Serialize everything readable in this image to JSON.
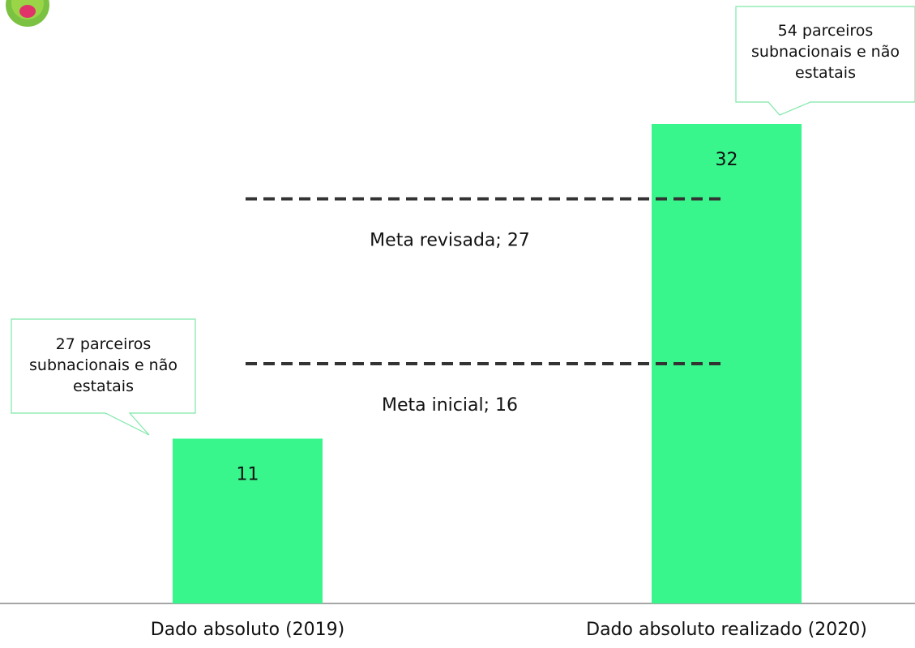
{
  "chart_data": {
    "type": "bar",
    "categories": [
      "Dado absoluto (2019)",
      "Dado absoluto realizado (2020)"
    ],
    "values": [
      11,
      32
    ],
    "color": "#38f58c",
    "ylim": [
      0,
      40
    ],
    "reference_lines": [
      {
        "label": "Meta revisada; 27",
        "value": 27
      },
      {
        "label": "Meta inicial; 16",
        "value": 16
      }
    ],
    "callouts": [
      "27 parceiros subnacionais e não estatais",
      "54 parceiros subnacionais e não estatais"
    ]
  }
}
